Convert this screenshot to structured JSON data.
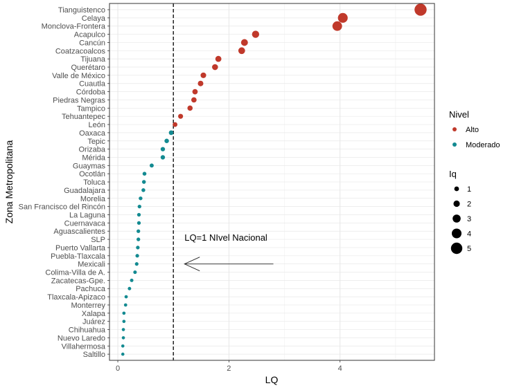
{
  "chart_data": {
    "type": "scatter",
    "xlabel": "LQ",
    "ylabel": "Zona Metropolitana",
    "xlim": [
      -0.15,
      5.7
    ],
    "xticks": [
      0,
      2,
      4
    ],
    "grid": true,
    "reference_line": {
      "x": 1,
      "style": "dashed"
    },
    "annotation": {
      "text": "LQ=1 NIvel Nacional",
      "arrow_from": [
        2.8,
        "Mexicali"
      ],
      "arrow_to": [
        1.2,
        "Mexicali"
      ]
    },
    "colors": {
      "Alto": "#c0392b",
      "Moderado": "#138a91"
    },
    "legend_color": {
      "title": "Nivel",
      "entries": [
        "Alto",
        "Moderado"
      ],
      "position": "right"
    },
    "legend_size": {
      "title": "Iq",
      "entries": [
        "1",
        "2",
        "3",
        "4",
        "5"
      ],
      "values": [
        1,
        2,
        3,
        4,
        5
      ],
      "position": "right"
    },
    "points": [
      {
        "zona": "Tianguistenco",
        "lq": 5.45,
        "nivel": "Alto"
      },
      {
        "zona": "Celaya",
        "lq": 4.05,
        "nivel": "Alto"
      },
      {
        "zona": "Monclova-Frontera",
        "lq": 3.95,
        "nivel": "Alto"
      },
      {
        "zona": "Acapulco",
        "lq": 2.48,
        "nivel": "Alto"
      },
      {
        "zona": "Cancún",
        "lq": 2.28,
        "nivel": "Alto"
      },
      {
        "zona": "Coatzacoalcos",
        "lq": 2.23,
        "nivel": "Alto"
      },
      {
        "zona": "Tijuana",
        "lq": 1.81,
        "nivel": "Alto"
      },
      {
        "zona": "Querétaro",
        "lq": 1.75,
        "nivel": "Alto"
      },
      {
        "zona": "Valle de México",
        "lq": 1.54,
        "nivel": "Alto"
      },
      {
        "zona": "Cuautla",
        "lq": 1.49,
        "nivel": "Alto"
      },
      {
        "zona": "Córdoba",
        "lq": 1.39,
        "nivel": "Alto"
      },
      {
        "zona": "Piedras Negras",
        "lq": 1.37,
        "nivel": "Alto"
      },
      {
        "zona": "Tampico",
        "lq": 1.3,
        "nivel": "Alto"
      },
      {
        "zona": "Tehuantepec",
        "lq": 1.13,
        "nivel": "Alto"
      },
      {
        "zona": "León",
        "lq": 1.03,
        "nivel": "Alto"
      },
      {
        "zona": "Oaxaca",
        "lq": 0.96,
        "nivel": "Moderado"
      },
      {
        "zona": "Tepic",
        "lq": 0.88,
        "nivel": "Moderado"
      },
      {
        "zona": "Orizaba",
        "lq": 0.81,
        "nivel": "Moderado"
      },
      {
        "zona": "Mérida",
        "lq": 0.81,
        "nivel": "Moderado"
      },
      {
        "zona": "Guaymas",
        "lq": 0.61,
        "nivel": "Moderado"
      },
      {
        "zona": "Ocotlán",
        "lq": 0.48,
        "nivel": "Moderado"
      },
      {
        "zona": "Toluca",
        "lq": 0.47,
        "nivel": "Moderado"
      },
      {
        "zona": "Guadalajara",
        "lq": 0.46,
        "nivel": "Moderado"
      },
      {
        "zona": "Morelia",
        "lq": 0.41,
        "nivel": "Moderado"
      },
      {
        "zona": "San Francisco del Rincón",
        "lq": 0.39,
        "nivel": "Moderado"
      },
      {
        "zona": "La Laguna",
        "lq": 0.38,
        "nivel": "Moderado"
      },
      {
        "zona": "Cuernavaca",
        "lq": 0.38,
        "nivel": "Moderado"
      },
      {
        "zona": "Aguascalientes",
        "lq": 0.37,
        "nivel": "Moderado"
      },
      {
        "zona": "SLP",
        "lq": 0.37,
        "nivel": "Moderado"
      },
      {
        "zona": "Puerto Vallarta",
        "lq": 0.36,
        "nivel": "Moderado"
      },
      {
        "zona": "Puebla-Tlaxcala",
        "lq": 0.35,
        "nivel": "Moderado"
      },
      {
        "zona": "Mexicali",
        "lq": 0.34,
        "nivel": "Moderado"
      },
      {
        "zona": "Colima-Villa de A.",
        "lq": 0.31,
        "nivel": "Moderado"
      },
      {
        "zona": "Zacatecas-Gpe.",
        "lq": 0.25,
        "nivel": "Moderado"
      },
      {
        "zona": "Pachuca",
        "lq": 0.21,
        "nivel": "Moderado"
      },
      {
        "zona": "Tlaxcala-Apizaco",
        "lq": 0.15,
        "nivel": "Moderado"
      },
      {
        "zona": "Monterrey",
        "lq": 0.14,
        "nivel": "Moderado"
      },
      {
        "zona": "Xalapa",
        "lq": 0.11,
        "nivel": "Moderado"
      },
      {
        "zona": "Juárez",
        "lq": 0.11,
        "nivel": "Moderado"
      },
      {
        "zona": "Chihuahua",
        "lq": 0.1,
        "nivel": "Moderado"
      },
      {
        "zona": "Nuevo Laredo",
        "lq": 0.1,
        "nivel": "Moderado"
      },
      {
        "zona": "Villahermosa",
        "lq": 0.09,
        "nivel": "Moderado"
      },
      {
        "zona": "Saltillo",
        "lq": 0.09,
        "nivel": "Moderado"
      }
    ]
  }
}
